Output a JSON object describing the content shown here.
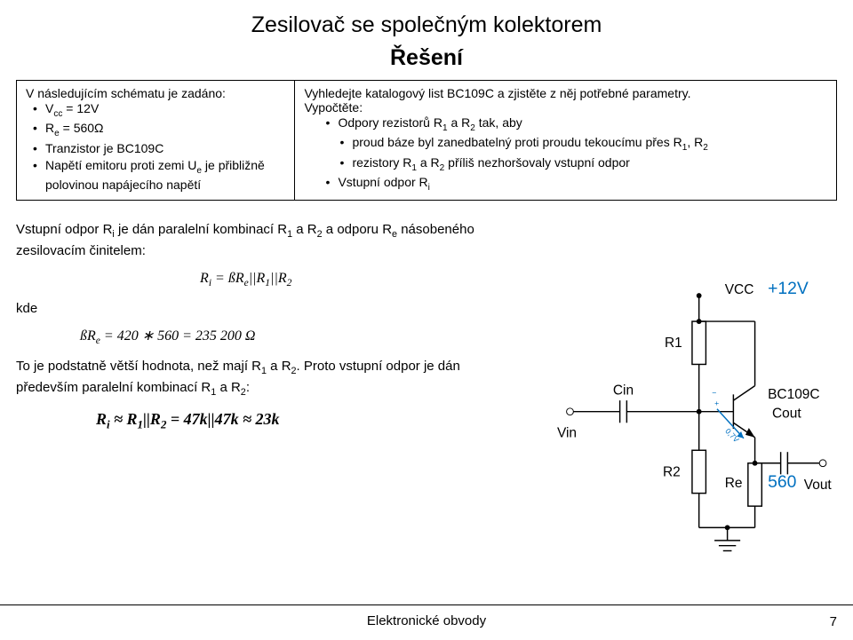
{
  "header": {
    "title": "Zesilovač se společným kolektorem",
    "subtitle": "Řešení"
  },
  "task": {
    "left": {
      "intro": "V následujícím schématu je zadáno:",
      "items": [
        "V<sub>cc</sub> = 12V",
        "R<sub>e</sub> = 560Ω",
        "Tranzistor je BC109C",
        "Napětí emitoru proti zemi U<sub>e</sub> je přibližně polovinou napájecího napětí"
      ]
    },
    "right": {
      "intro1": "Vyhledejte katalogový list BC109C a zjistěte z něj potřebné parametry.",
      "intro2": "Vypočtěte:",
      "l2a": "Odpory rezistorů R<sub>1</sub> a R<sub>2</sub> tak, aby",
      "l3a": "proud báze byl zanedbatelný proti proudu tekoucímu přes R<sub>1</sub>, R<sub>2</sub>",
      "l3b": "rezistory R<sub>1</sub> a R<sub>2</sub> příliš nezhoršovaly vstupní odpor",
      "l2b": "Vstupní odpor R<sub>i</sub>"
    }
  },
  "body": {
    "para1": "Vstupní odpor R<sub>i</sub> je dán paralelní kombinací R<sub>1</sub> a R<sub>2</sub> a odporu R<sub>e</sub> násobeného zesilovacím činitelem:",
    "eq1": "R<sub>i</sub> = ßR<sub>e</sub>||R<sub>1</sub>||R<sub>2</sub>",
    "kde": "kde",
    "eq2": "ßR<sub>e</sub> = 420 ∗ 560 = 235 200 Ω",
    "para2": "To je podstatně větší hodnota, než mají R<sub>1</sub> a R<sub>2</sub>. Proto vstupní odpor je dán především paralelní kombinací R<sub>1</sub> a R<sub>2</sub>:",
    "eq3": "R<sub>i</sub> ≈ R<sub>1</sub>||R<sub>2</sub> = 47k||47k ≈ 23k"
  },
  "circuit": {
    "labels": {
      "vcc": "VCC",
      "vcc_val": "+12V",
      "r1": "R1",
      "r2": "R2",
      "re": "Re",
      "re_val": "560",
      "cin": "Cin",
      "cout": "Cout",
      "vin": "Vin",
      "vout": "Vout",
      "bjt": "BC109C",
      "diode_v": "0,7V",
      "plus": "+",
      "minus": "−"
    },
    "colors": {
      "wire": "#000000",
      "accent": "#0070c0"
    }
  },
  "footer": {
    "text": "Elektronické obvody",
    "page": "7"
  }
}
